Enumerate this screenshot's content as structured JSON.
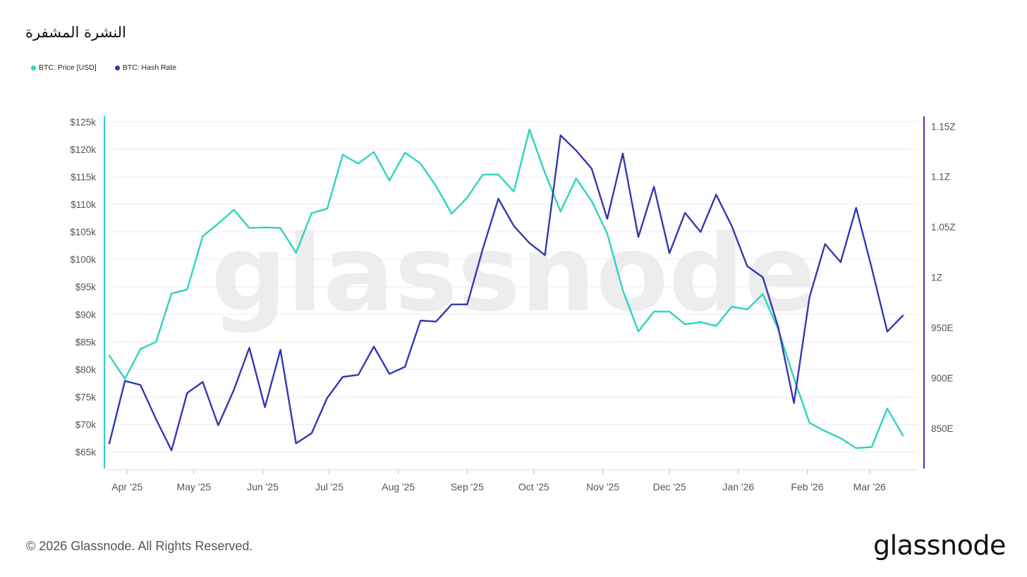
{
  "header": {
    "title": "النشرة المشفرة"
  },
  "footer": {
    "copyright": "© 2026 Glassnode. All Rights Reserved.",
    "logo_text": "glassnode"
  },
  "watermark": "glassnode",
  "colors": {
    "price": "#2dd4bf",
    "hashrate": "#3438b0",
    "grid": "#ececec",
    "axis_text": "#555555"
  },
  "chart_data": {
    "type": "line",
    "title": "النشرة المشفرة",
    "legend_position": "top-left",
    "grid": true,
    "x_tick_labels": [
      "Apr '25",
      "May '25",
      "Jun '25",
      "Jul '25",
      "Aug '25",
      "Sep '25",
      "Oct '25",
      "Nov '25",
      "Dec '25",
      "Jan '26",
      "Feb '26",
      "Mar '26"
    ],
    "x_ticks": [
      "2025-04-01",
      "2025-05-01",
      "2025-06-01",
      "2025-07-01",
      "2025-08-01",
      "2025-09-01",
      "2025-10-01",
      "2025-11-01",
      "2025-12-01",
      "2026-01-01",
      "2026-02-01",
      "2026-03-01"
    ],
    "x_range": [
      "2025-03-24",
      "2026-03-16"
    ],
    "y_left": {
      "ticks": [
        65000,
        70000,
        75000,
        80000,
        85000,
        90000,
        95000,
        100000,
        105000,
        110000,
        115000,
        120000,
        125000
      ],
      "tick_labels": [
        "$65k",
        "$70k",
        "$75k",
        "$80k",
        "$85k",
        "$90k",
        "$95k",
        "$100k",
        "$105k",
        "$110k",
        "$115k",
        "$120k",
        "$125k"
      ],
      "range": [
        62000,
        126000
      ]
    },
    "y_right": {
      "ticks": [
        850,
        900,
        950,
        1000,
        1050,
        1100,
        1150
      ],
      "tick_labels": [
        "850E",
        "900E",
        "950E",
        "1Z",
        "1.05Z",
        "1.1Z",
        "1.15Z"
      ],
      "unit": "EH/s",
      "range": [
        810,
        1160
      ]
    },
    "x": [
      "2025-03-24",
      "2025-03-31",
      "2025-04-07",
      "2025-04-14",
      "2025-04-21",
      "2025-04-28",
      "2025-05-05",
      "2025-05-12",
      "2025-05-19",
      "2025-05-26",
      "2025-06-02",
      "2025-06-09",
      "2025-06-16",
      "2025-06-23",
      "2025-06-30",
      "2025-07-07",
      "2025-07-14",
      "2025-07-21",
      "2025-07-28",
      "2025-08-04",
      "2025-08-11",
      "2025-08-18",
      "2025-08-25",
      "2025-09-01",
      "2025-09-08",
      "2025-09-15",
      "2025-09-22",
      "2025-09-29",
      "2025-10-06",
      "2025-10-13",
      "2025-10-20",
      "2025-10-27",
      "2025-11-03",
      "2025-11-10",
      "2025-11-17",
      "2025-11-24",
      "2025-12-01",
      "2025-12-08",
      "2025-12-15",
      "2025-12-22",
      "2025-12-29",
      "2026-01-05",
      "2026-01-12",
      "2026-01-19",
      "2026-01-26",
      "2026-02-02",
      "2026-02-09",
      "2026-02-16",
      "2026-02-23",
      "2026-03-02",
      "2026-03-09",
      "2026-03-16"
    ],
    "series": [
      {
        "name": "BTC: Price [USD]",
        "axis": "left",
        "values": [
          82500,
          78300,
          83700,
          85000,
          93800,
          94500,
          104200,
          106500,
          109000,
          105700,
          105800,
          105700,
          101200,
          108400,
          109200,
          119000,
          117400,
          119500,
          114300,
          119400,
          117400,
          113300,
          108300,
          111200,
          115400,
          115400,
          112300,
          123600,
          115700,
          108700,
          114700,
          110600,
          104700,
          94400,
          86900,
          90500,
          90500,
          88200,
          88600,
          87900,
          91400,
          90900,
          93700,
          87200,
          78400,
          70300,
          68800,
          67500,
          65700,
          65900,
          72900,
          68000
        ]
      },
      {
        "name": "BTC: Hash Rate",
        "axis": "right",
        "values": [
          835,
          897,
          893,
          859,
          828,
          885,
          896,
          853,
          888,
          930,
          871,
          928,
          835,
          845,
          880,
          901,
          903,
          931,
          904,
          911,
          957,
          956,
          973,
          973,
          1028,
          1078,
          1051,
          1034,
          1022,
          1141,
          1126,
          1108,
          1058,
          1123,
          1040,
          1090,
          1024,
          1064,
          1045,
          1082,
          1051,
          1011,
          1000,
          950,
          875,
          980,
          1033,
          1015,
          1069,
          1009,
          946,
          962
        ]
      }
    ]
  }
}
